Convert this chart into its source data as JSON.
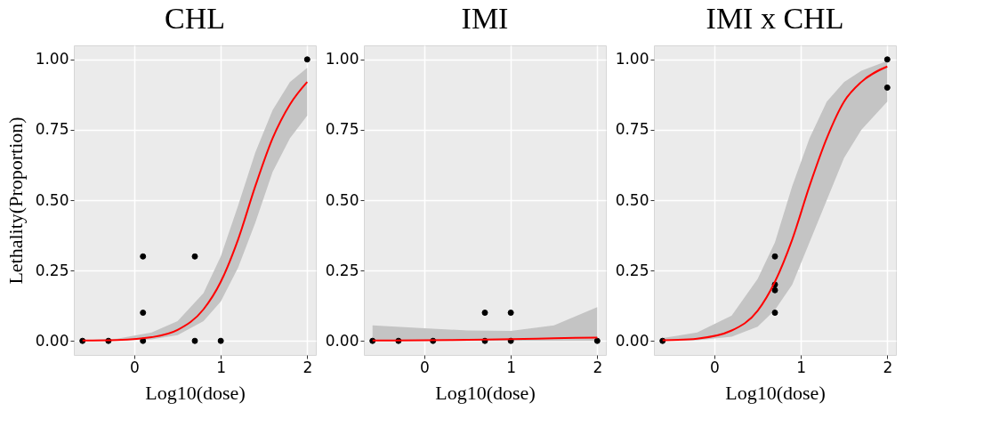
{
  "chart_data": [
    {
      "type": "scatter",
      "title": "CHL",
      "xlabel": "Log10(dose)",
      "ylabel": "Lethality(Proportion)",
      "xlim": [
        -0.7,
        2.1
      ],
      "ylim": [
        -0.05,
        1.05
      ],
      "xticks": [
        0,
        1,
        2
      ],
      "yticks": [
        {
          "value": 0,
          "label": "0.00"
        },
        {
          "value": 0.25,
          "label": "0.25"
        },
        {
          "value": 0.5,
          "label": "0.50"
        },
        {
          "value": 0.75,
          "label": "0.75"
        },
        {
          "value": 1,
          "label": "1.00"
        }
      ],
      "grid": true,
      "series": [
        {
          "type": "scatter",
          "marker": "circle",
          "color": "#000000",
          "x": [
            -0.6,
            -0.3,
            0.1,
            0.1,
            0.1,
            0.7,
            0.7,
            1,
            2
          ],
          "values": [
            0,
            0,
            0,
            0.1,
            0.3,
            0,
            0.3,
            0,
            1
          ]
        },
        {
          "type": "line",
          "color": "#ff0000",
          "x": [
            -0.6,
            -0.2,
            0.2,
            0.5,
            0.8,
            1.0,
            1.2,
            1.4,
            1.6,
            1.8,
            2.0
          ],
          "values": [
            0.001,
            0.003,
            0.013,
            0.039,
            0.112,
            0.21,
            0.36,
            0.55,
            0.72,
            0.84,
            0.92
          ],
          "lower": [
            0,
            0.001,
            0.005,
            0.02,
            0.07,
            0.14,
            0.26,
            0.42,
            0.6,
            0.72,
            0.8
          ],
          "upper": [
            0.002,
            0.008,
            0.03,
            0.07,
            0.17,
            0.3,
            0.48,
            0.67,
            0.82,
            0.92,
            0.97
          ]
        }
      ]
    },
    {
      "type": "scatter",
      "title": "IMI",
      "xlabel": "Log10(dose)",
      "xlim": [
        -0.7,
        2.1
      ],
      "ylim": [
        -0.05,
        1.05
      ],
      "xticks": [
        0,
        1,
        2
      ],
      "yticks": [
        {
          "value": 0,
          "label": "0.00"
        },
        {
          "value": 0.25,
          "label": "0.25"
        },
        {
          "value": 0.5,
          "label": "0.50"
        },
        {
          "value": 0.75,
          "label": "0.75"
        },
        {
          "value": 1,
          "label": "1.00"
        }
      ],
      "grid": true,
      "series": [
        {
          "type": "scatter",
          "marker": "circle",
          "color": "#000000",
          "x": [
            -0.6,
            -0.3,
            0.1,
            0.7,
            0.7,
            1,
            1,
            2
          ],
          "values": [
            0,
            0,
            0,
            0,
            0.1,
            0,
            0.1,
            0
          ]
        },
        {
          "type": "line",
          "color": "#ff0000",
          "x": [
            -0.6,
            0,
            0.5,
            1,
            1.5,
            2
          ],
          "values": [
            0.001,
            0.002,
            0.004,
            0.006,
            0.009,
            0.012
          ],
          "lower": [
            0,
            0,
            0,
            0,
            0,
            0
          ],
          "upper": [
            0.055,
            0.045,
            0.037,
            0.035,
            0.055,
            0.12
          ]
        }
      ]
    },
    {
      "type": "scatter",
      "title": "IMI x CHL",
      "xlabel": "Log10(dose)",
      "xlim": [
        -0.7,
        2.1
      ],
      "ylim": [
        -0.05,
        1.05
      ],
      "xticks": [
        0,
        1,
        2
      ],
      "yticks": [
        {
          "value": 0,
          "label": "0.00"
        },
        {
          "value": 0.25,
          "label": "0.25"
        },
        {
          "value": 0.5,
          "label": "0.50"
        },
        {
          "value": 0.75,
          "label": "0.75"
        },
        {
          "value": 1,
          "label": "1.00"
        }
      ],
      "grid": true,
      "series": [
        {
          "type": "scatter",
          "marker": "circle",
          "color": "#000000",
          "x": [
            -0.6,
            0.7,
            0.7,
            0.7,
            0.7,
            2,
            2
          ],
          "values": [
            0,
            0.3,
            0.2,
            0.18,
            0.1,
            1,
            0.9
          ]
        },
        {
          "type": "line",
          "color": "#ff0000",
          "x": [
            -0.6,
            -0.2,
            0.2,
            0.5,
            0.7,
            0.9,
            1.1,
            1.3,
            1.5,
            1.7,
            2.0
          ],
          "values": [
            0.002,
            0.008,
            0.037,
            0.107,
            0.21,
            0.36,
            0.55,
            0.72,
            0.85,
            0.92,
            0.975
          ],
          "lower": [
            0,
            0.002,
            0.015,
            0.05,
            0.11,
            0.2,
            0.35,
            0.5,
            0.65,
            0.75,
            0.85
          ],
          "upper": [
            0.01,
            0.03,
            0.09,
            0.22,
            0.35,
            0.55,
            0.72,
            0.85,
            0.92,
            0.96,
            0.995
          ]
        }
      ]
    }
  ]
}
